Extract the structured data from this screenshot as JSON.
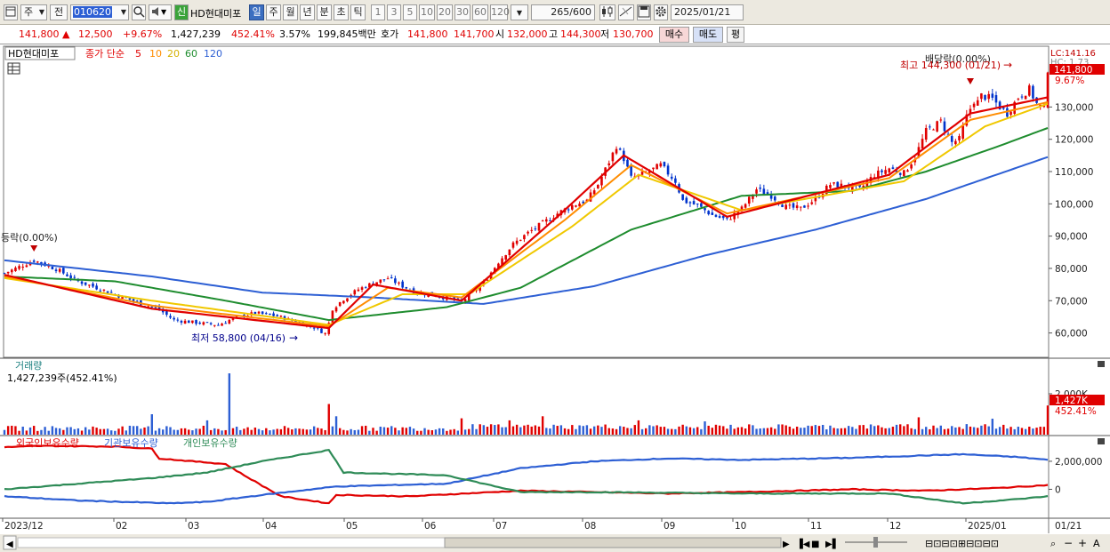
{
  "toolbar": {
    "period_type": "주",
    "prev_label": "전",
    "code": "010620",
    "new_badge": "신",
    "stock_name": "HD현대미포",
    "periods": [
      "일",
      "주",
      "월",
      "년",
      "분",
      "초",
      "틱"
    ],
    "active_period": "일",
    "intervals": [
      "1",
      "3",
      "5",
      "10",
      "20",
      "30",
      "60",
      "120"
    ],
    "count": "265",
    "count_max": "/600",
    "date": "2025/01/21"
  },
  "quote": {
    "price": "141,800",
    "change": "12,500",
    "change_pct": "+9.67%",
    "volume": "1,427,239",
    "volume_ratio": "452.41%",
    "turnover": "3.57%",
    "amount": "199,845백만",
    "ask_label": "호가",
    "ask": "141,800",
    "bid": "141,700",
    "open_label": "시",
    "open": "132,000",
    "high_label": "고",
    "high": "144,300",
    "low_label": "저",
    "low": "130,700",
    "buy_label": "매수",
    "sell_label": "매도",
    "eval_label": "평"
  },
  "legend": {
    "name": "HD현대미포",
    "ma_prefix": "종가 단순",
    "ma": [
      {
        "label": "5",
        "color": "#e00000"
      },
      {
        "label": "10",
        "color": "#ff8c00"
      },
      {
        "label": "20",
        "color": "#f0c800"
      },
      {
        "label": "60",
        "color": "#1e8c2e"
      },
      {
        "label": "120",
        "color": "#2d5fd4"
      }
    ]
  },
  "annotations": {
    "drop_left": "등락(0.00%)",
    "dividend": "배당락(0.00%)",
    "high_label": "최고 144,300 (01/21)",
    "low_label": "최저 58,800 (04/16)",
    "lc_label": "LC:141.16",
    "hc_label": "HC: 1.73",
    "price_tag": "141,800",
    "pct_tag": "9.67%",
    "vol_tag": "1,427K",
    "vol_pct_tag": "452.41%"
  },
  "volume_panel": {
    "title": "거래량",
    "current": "1,427,239주(452.41%)"
  },
  "holdings_panel": {
    "series": [
      {
        "name": "외국인보유수량",
        "color": "#e00000"
      },
      {
        "name": "기관보유수량",
        "color": "#2d5fd4"
      },
      {
        "name": "개인보유수량",
        "color": "#2e8b57"
      }
    ]
  },
  "chart_data": [
    {
      "type": "candlestick",
      "title": "HD현대미포",
      "y_ticks": [
        "130,000",
        "120,000",
        "110,000",
        "100,000",
        "90,000",
        "80,000",
        "70,000",
        "60,000"
      ],
      "ylim": [
        53000,
        148000
      ],
      "x_ticks": [
        "2023/12",
        "02",
        "03",
        "04",
        "05",
        "06",
        "07",
        "08",
        "09",
        "10",
        "11",
        "12",
        "2025/01",
        "01/21"
      ],
      "close_path": [
        [
          0,
          78500
        ],
        [
          8,
          82500
        ],
        [
          14,
          79800
        ],
        [
          20,
          76000
        ],
        [
          28,
          72800
        ],
        [
          36,
          69500
        ],
        [
          42,
          67200
        ],
        [
          46,
          64000
        ],
        [
          52,
          63200
        ],
        [
          58,
          62500
        ],
        [
          62,
          64500
        ],
        [
          68,
          66200
        ],
        [
          74,
          65200
        ],
        [
          80,
          63200
        ],
        [
          84,
          61800
        ],
        [
          87,
          59800
        ],
        [
          88,
          63000
        ],
        [
          89,
          67500
        ],
        [
          92,
          70500
        ],
        [
          96,
          73500
        ],
        [
          100,
          75500
        ],
        [
          104,
          77000
        ],
        [
          108,
          74500
        ],
        [
          112,
          72500
        ],
        [
          116,
          71800
        ],
        [
          120,
          70800
        ],
        [
          124,
          69800
        ],
        [
          126,
          71500
        ],
        [
          130,
          75500
        ],
        [
          134,
          82000
        ],
        [
          138,
          87500
        ],
        [
          142,
          91000
        ],
        [
          146,
          94000
        ],
        [
          150,
          97000
        ],
        [
          154,
          99500
        ],
        [
          158,
          101000
        ],
        [
          161,
          106000
        ],
        [
          164,
          113000
        ],
        [
          166,
          118000
        ],
        [
          168,
          114000
        ],
        [
          170,
          108000
        ],
        [
          174,
          109500
        ],
        [
          178,
          112000
        ],
        [
          182,
          107000
        ],
        [
          184,
          101000
        ],
        [
          188,
          99500
        ],
        [
          192,
          96500
        ],
        [
          196,
          95000
        ],
        [
          200,
          98500
        ],
        [
          204,
          104500
        ],
        [
          208,
          102500
        ],
        [
          212,
          99000
        ],
        [
          216,
          98500
        ],
        [
          220,
          101500
        ],
        [
          224,
          106000
        ],
        [
          228,
          105500
        ],
        [
          232,
          104500
        ],
        [
          236,
          109000
        ],
        [
          240,
          111000
        ],
        [
          244,
          109500
        ],
        [
          247,
          114500
        ],
        [
          250,
          122500
        ],
        [
          254,
          125500
        ],
        [
          257,
          119000
        ],
        [
          259,
          120000
        ],
        [
          261,
          127000
        ],
        [
          263,
          132000
        ],
        [
          264,
          131500
        ],
        [
          265,
          133500
        ],
        [
          268,
          132500
        ],
        [
          270,
          130000
        ],
        [
          272,
          128000
        ],
        [
          275,
          133000
        ],
        [
          278,
          135500
        ],
        [
          280,
          131000
        ],
        [
          282,
          129300
        ],
        [
          283,
          141800
        ]
      ],
      "ma": {
        "5": [
          [
            0,
            78000
          ],
          [
            40,
            67500
          ],
          [
            88,
            61500
          ],
          [
            100,
            75000
          ],
          [
            124,
            70000
          ],
          [
            150,
            96000
          ],
          [
            168,
            115000
          ],
          [
            196,
            96000
          ],
          [
            240,
            109000
          ],
          [
            262,
            128000
          ],
          [
            283,
            133000
          ]
        ],
        "10": [
          [
            0,
            77500
          ],
          [
            40,
            68500
          ],
          [
            88,
            62000
          ],
          [
            104,
            74000
          ],
          [
            124,
            71000
          ],
          [
            152,
            95000
          ],
          [
            170,
            112000
          ],
          [
            196,
            97000
          ],
          [
            240,
            108000
          ],
          [
            262,
            126000
          ],
          [
            283,
            131500
          ]
        ],
        "20": [
          [
            0,
            77000
          ],
          [
            40,
            70000
          ],
          [
            88,
            62500
          ],
          [
            108,
            72000
          ],
          [
            126,
            72000
          ],
          [
            154,
            93000
          ],
          [
            172,
            109000
          ],
          [
            200,
            98000
          ],
          [
            244,
            107000
          ],
          [
            266,
            124000
          ],
          [
            283,
            131000
          ]
        ],
        "60": [
          [
            0,
            77500
          ],
          [
            30,
            76000
          ],
          [
            60,
            70000
          ],
          [
            88,
            64000
          ],
          [
            120,
            68000
          ],
          [
            140,
            74000
          ],
          [
            170,
            92000
          ],
          [
            200,
            102500
          ],
          [
            230,
            104000
          ],
          [
            250,
            110000
          ],
          [
            270,
            118000
          ],
          [
            283,
            123500
          ]
        ],
        "120": [
          [
            0,
            82500
          ],
          [
            40,
            77500
          ],
          [
            70,
            72500
          ],
          [
            100,
            71000
          ],
          [
            130,
            69000
          ],
          [
            160,
            74500
          ],
          [
            190,
            84000
          ],
          [
            220,
            92000
          ],
          [
            250,
            101500
          ],
          [
            283,
            114500
          ]
        ]
      }
    },
    {
      "type": "bar",
      "title": "거래량",
      "y_ticks": [
        "2,000K"
      ],
      "ylim": [
        0,
        3000000
      ],
      "spikes": [
        [
          40,
          1000000
        ],
        [
          55,
          700000
        ],
        [
          61,
          3000000
        ],
        [
          88,
          1500000
        ],
        [
          90,
          900000
        ],
        [
          124,
          800000
        ],
        [
          137,
          700000
        ],
        [
          146,
          900000
        ],
        [
          172,
          700000
        ],
        [
          190,
          650000
        ],
        [
          248,
          850000
        ],
        [
          268,
          780000
        ],
        [
          283,
          1427239
        ]
      ]
    },
    {
      "type": "line",
      "title": "외국인보유수량",
      "y_ticks": [
        "2,000,000",
        "0"
      ],
      "ylim": [
        -2000000,
        3200000
      ],
      "series": [
        {
          "name": "외국인보유수량",
          "points": [
            [
              0,
              3000000
            ],
            [
              10,
              3100000
            ],
            [
              30,
              3050000
            ],
            [
              40,
              2900000
            ],
            [
              42,
              2200000
            ],
            [
              60,
              1800000
            ],
            [
              65,
              1000000
            ],
            [
              75,
              -500000
            ],
            [
              88,
              -1000000
            ],
            [
              90,
              -400000
            ],
            [
              110,
              -500000
            ],
            [
              140,
              -100000
            ],
            [
              160,
              -200000
            ],
            [
              180,
              -300000
            ],
            [
              200,
              -200000
            ],
            [
              230,
              0
            ],
            [
              250,
              -100000
            ],
            [
              270,
              100000
            ],
            [
              283,
              300000
            ]
          ]
        },
        {
          "name": "기관보유수량",
          "points": [
            [
              0,
              -500000
            ],
            [
              20,
              -800000
            ],
            [
              45,
              -1000000
            ],
            [
              55,
              -900000
            ],
            [
              70,
              -400000
            ],
            [
              90,
              200000
            ],
            [
              120,
              400000
            ],
            [
              140,
              1500000
            ],
            [
              160,
              2000000
            ],
            [
              180,
              2200000
            ],
            [
              200,
              2100000
            ],
            [
              230,
              2250000
            ],
            [
              260,
              2500000
            ],
            [
              275,
              2300000
            ],
            [
              283,
              2100000
            ]
          ]
        },
        {
          "name": "개인보유수량",
          "points": [
            [
              0,
              0
            ],
            [
              20,
              400000
            ],
            [
              40,
              800000
            ],
            [
              55,
              1200000
            ],
            [
              70,
              2000000
            ],
            [
              88,
              2800000
            ],
            [
              92,
              1200000
            ],
            [
              120,
              1000000
            ],
            [
              140,
              -200000
            ],
            [
              160,
              -200000
            ],
            [
              200,
              -300000
            ],
            [
              240,
              -300000
            ],
            [
              260,
              -1000000
            ],
            [
              275,
              -700000
            ],
            [
              283,
              -500000
            ]
          ]
        }
      ]
    }
  ]
}
